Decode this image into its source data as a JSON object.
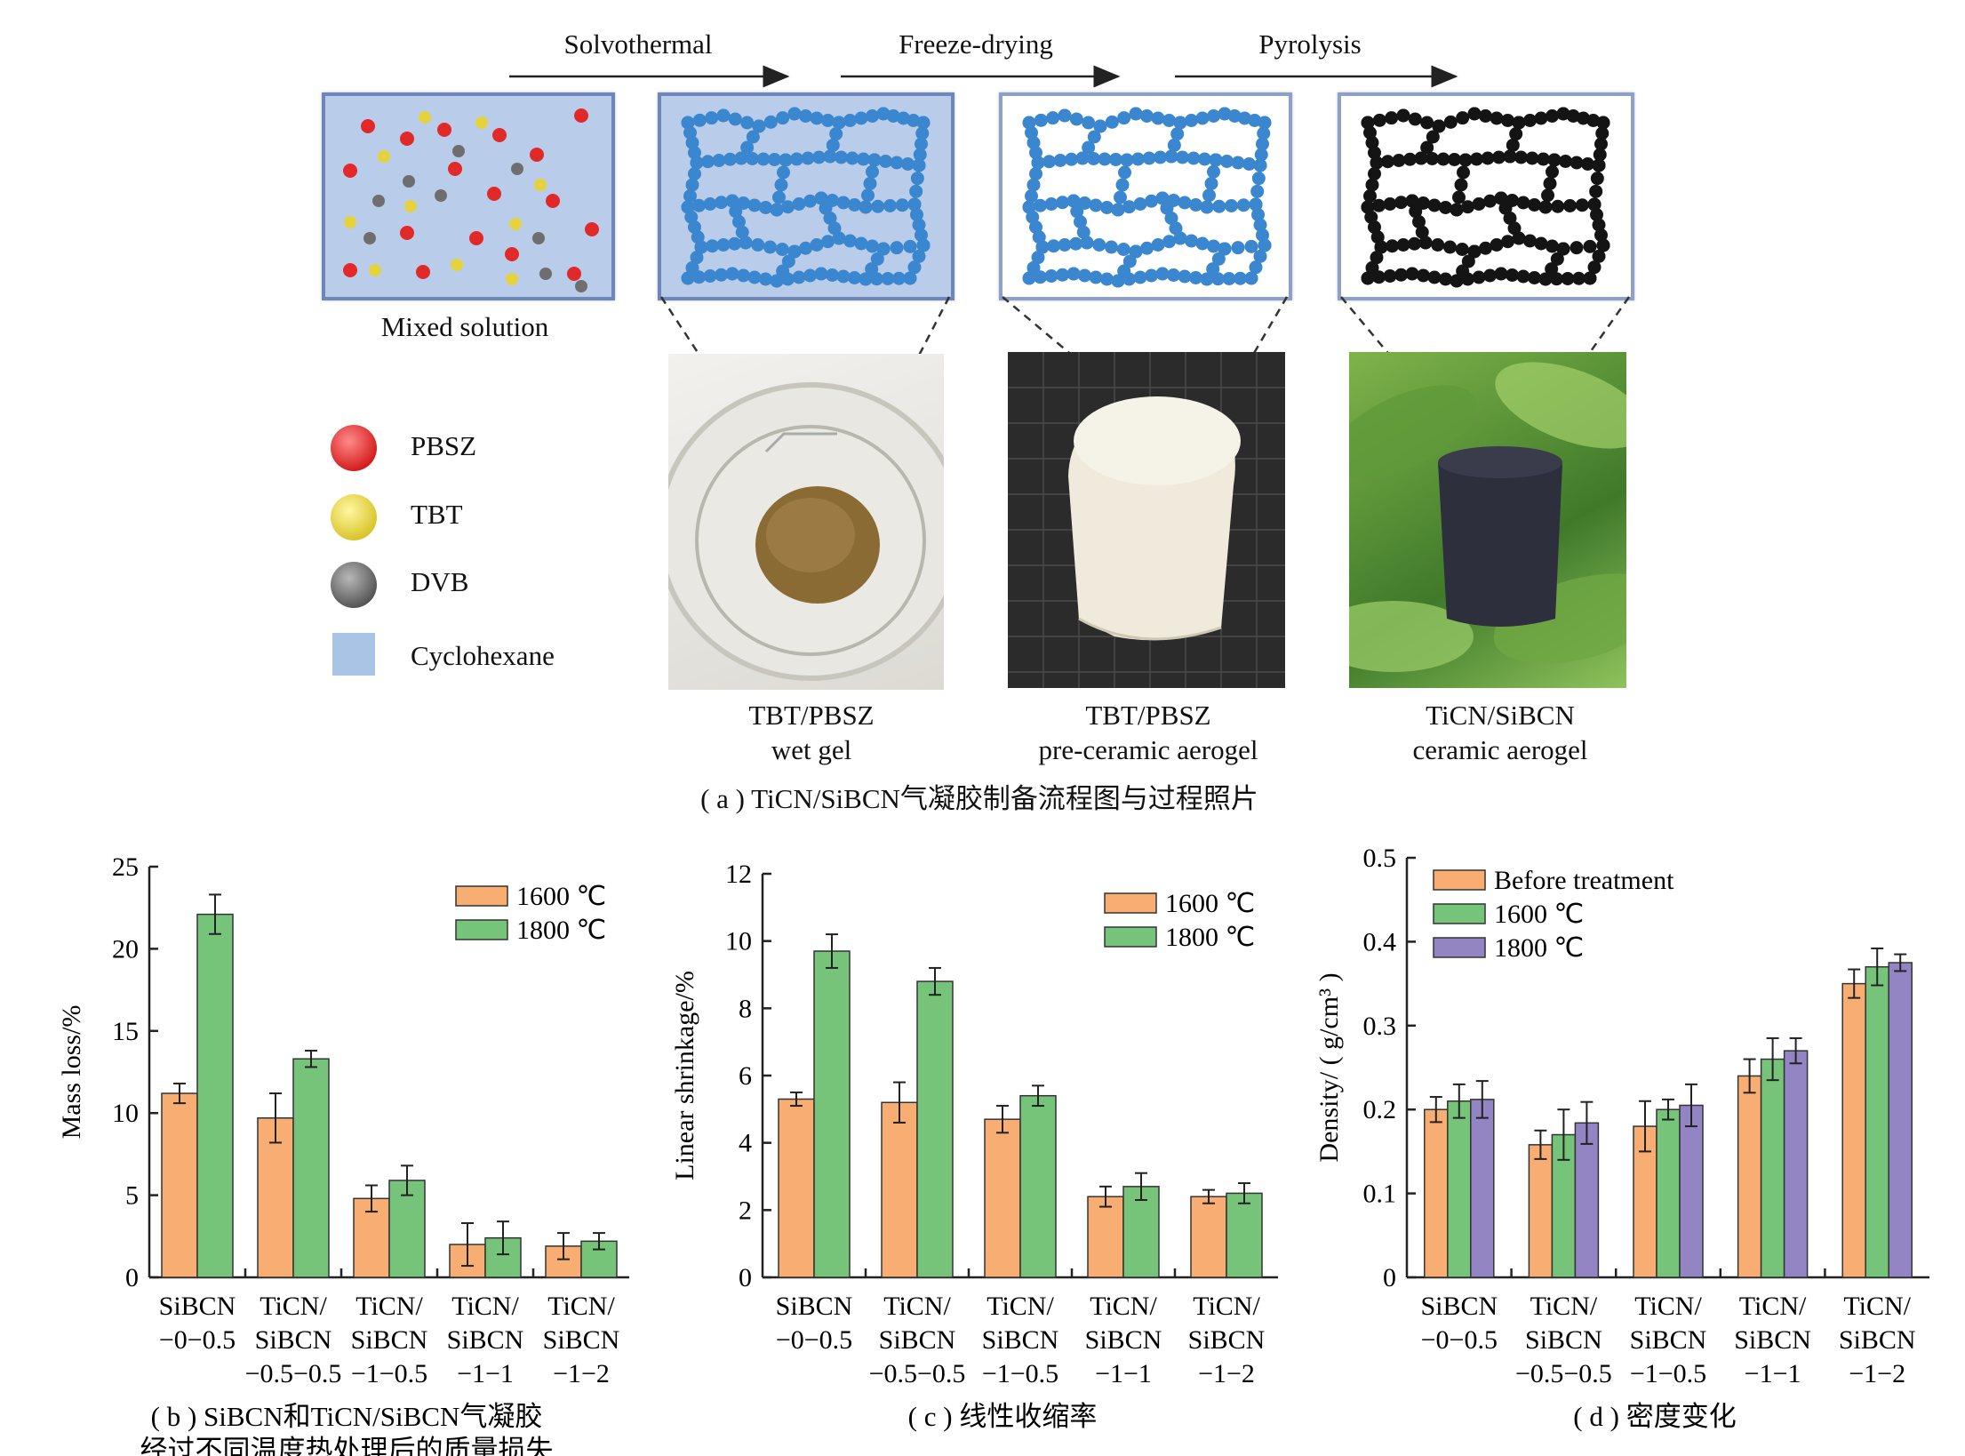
{
  "panel_a": {
    "steps": [
      "Solvothermal",
      "Freeze-drying",
      "Pyrolysis"
    ],
    "mixed_solution_label": "Mixed solution",
    "legend": [
      {
        "label": "PBSZ",
        "color": "#e02a2a"
      },
      {
        "label": "TBT",
        "color": "#e6d23c"
      },
      {
        "label": "DVB",
        "color": "#6e6e6e"
      },
      {
        "label": "Cyclohexane",
        "color": "#aac4e6"
      }
    ],
    "stage_labels": [
      {
        "line1": "TBT/PBSZ",
        "line2": "wet gel"
      },
      {
        "line1": "TBT/PBSZ",
        "line2": "pre-ceramic aerogel"
      },
      {
        "line1": "TiCN/SiBCN",
        "line2": "ceramic aerogel"
      }
    ],
    "caption": "( a ) TiCN/SiBCN气凝胶制备流程图与过程照片"
  },
  "chart_data": [
    {
      "type": "bar",
      "id": "b",
      "ylabel": "Mass loss/%",
      "ylim": [
        0,
        25
      ],
      "yticks": [
        "0",
        "5",
        "10",
        "15",
        "20",
        "25"
      ],
      "categories": [
        [
          "SiBCN",
          "−0−0.5"
        ],
        [
          "TiCN/",
          "SiBCN",
          "−0.5−0.5"
        ],
        [
          "TiCN/",
          "SiBCN",
          "−1−0.5"
        ],
        [
          "TiCN/",
          "SiBCN",
          "−1−1"
        ],
        [
          "TiCN/",
          "SiBCN",
          "−1−2"
        ]
      ],
      "series": [
        {
          "name": "1600 ℃",
          "color": "#f8ad72",
          "values": [
            11.2,
            9.7,
            4.8,
            2.0,
            1.9
          ],
          "errors": [
            0.6,
            1.5,
            0.8,
            1.3,
            0.8
          ]
        },
        {
          "name": "1800 ℃",
          "color": "#76c47a",
          "values": [
            22.1,
            13.3,
            5.9,
            2.4,
            2.2
          ],
          "errors": [
            1.2,
            0.5,
            0.9,
            1.0,
            0.5
          ]
        }
      ],
      "legend_position": "top-right",
      "caption_lines": [
        "( b ) SiBCN和TiCN/SiBCN气凝胶",
        "经过不同温度热处理后的质量损失"
      ]
    },
    {
      "type": "bar",
      "id": "c",
      "ylabel": "Linear shrinkage/%",
      "ylim": [
        0,
        12
      ],
      "yticks": [
        "0",
        "2",
        "4",
        "6",
        "8",
        "10",
        "12"
      ],
      "categories": [
        [
          "SiBCN",
          "−0−0.5"
        ],
        [
          "TiCN/",
          "SiBCN",
          "−0.5−0.5"
        ],
        [
          "TiCN/",
          "SiBCN",
          "−1−0.5"
        ],
        [
          "TiCN/",
          "SiBCN",
          "−1−1"
        ],
        [
          "TiCN/",
          "SiBCN",
          "−1−2"
        ]
      ],
      "series": [
        {
          "name": "1600 ℃",
          "color": "#f8ad72",
          "values": [
            5.3,
            5.2,
            4.7,
            2.4,
            2.4
          ],
          "errors": [
            0.2,
            0.6,
            0.4,
            0.3,
            0.2
          ]
        },
        {
          "name": "1800 ℃",
          "color": "#76c47a",
          "values": [
            9.7,
            8.8,
            5.4,
            2.7,
            2.5
          ],
          "errors": [
            0.5,
            0.4,
            0.3,
            0.4,
            0.3
          ]
        }
      ],
      "legend_position": "top-right",
      "caption_lines": [
        "( c ) 线性收缩率"
      ]
    },
    {
      "type": "bar",
      "id": "d",
      "ylabel": "Density/ ( g/cm³ )",
      "ylim": [
        0,
        0.5
      ],
      "yticks": [
        "0",
        "0.1",
        "0.2",
        "0.3",
        "0.4",
        "0.5"
      ],
      "categories": [
        [
          "SiBCN",
          "−0−0.5"
        ],
        [
          "TiCN/",
          "SiBCN",
          "−0.5−0.5"
        ],
        [
          "TiCN/",
          "SiBCN",
          "−1−0.5"
        ],
        [
          "TiCN/",
          "SiBCN",
          "−1−1"
        ],
        [
          "TiCN/",
          "SiBCN",
          "−1−2"
        ]
      ],
      "series": [
        {
          "name": "Before treatment",
          "color": "#f8ad72",
          "values": [
            0.2,
            0.158,
            0.18,
            0.24,
            0.35
          ],
          "errors": [
            0.015,
            0.017,
            0.03,
            0.02,
            0.017
          ]
        },
        {
          "name": "1600 ℃",
          "color": "#76c47a",
          "values": [
            0.21,
            0.17,
            0.2,
            0.26,
            0.37
          ],
          "errors": [
            0.02,
            0.03,
            0.012,
            0.025,
            0.022
          ]
        },
        {
          "name": "1800 ℃",
          "color": "#9384c4",
          "values": [
            0.212,
            0.184,
            0.205,
            0.27,
            0.375
          ],
          "errors": [
            0.022,
            0.025,
            0.025,
            0.015,
            0.01
          ]
        }
      ],
      "legend_position": "top-left",
      "caption_lines": [
        "( d ) 密度变化"
      ]
    }
  ]
}
